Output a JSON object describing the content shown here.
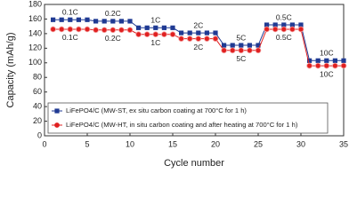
{
  "chart_data": {
    "type": "line",
    "x_label": "Cycle number",
    "y_label": "Capacity (mAh/g)",
    "x": [
      1,
      2,
      3,
      4,
      5,
      6,
      7,
      8,
      9,
      10,
      11,
      12,
      13,
      14,
      15,
      16,
      17,
      18,
      19,
      20,
      21,
      22,
      23,
      24,
      25,
      26,
      27,
      28,
      29,
      30,
      31,
      32,
      33,
      34,
      35
    ],
    "series": [
      {
        "name": "LiFePO4/C (MW-ST, ex situ carbon coating at 700°C for 1 h)",
        "color": "#1f3a93",
        "marker": "square",
        "values": [
          159,
          159,
          159,
          159,
          159,
          157,
          157,
          157,
          157,
          157,
          148,
          148,
          148,
          148,
          148,
          141,
          141,
          141,
          141,
          141,
          124,
          124,
          124,
          124,
          124,
          152,
          152,
          152,
          152,
          152,
          103,
          103,
          103,
          103,
          103
        ]
      },
      {
        "name": "LiFePO4/C (MW-HT, in situ carbon coating and after heating at 700°C for 1 h)",
        "color": "#e02020",
        "marker": "circle",
        "values": [
          146,
          146,
          146,
          146,
          146,
          145,
          145,
          145,
          145,
          145,
          139,
          139,
          139,
          139,
          139,
          133,
          133,
          133,
          133,
          133,
          117,
          117,
          117,
          117,
          117,
          146,
          146,
          146,
          146,
          146,
          96,
          96,
          96,
          96,
          96
        ]
      }
    ],
    "annotations": [
      "0.1C",
      "0.2C",
      "1C",
      "2C",
      "5C",
      "0.5C",
      "10C"
    ],
    "xlim": [
      0,
      35
    ],
    "xticks": [
      0,
      5,
      10,
      15,
      20,
      25,
      30,
      35
    ],
    "ylim": [
      0,
      180
    ],
    "yticks": [
      0,
      20,
      40,
      60,
      80,
      100,
      120,
      140,
      160,
      180
    ],
    "legend": "lower left"
  }
}
